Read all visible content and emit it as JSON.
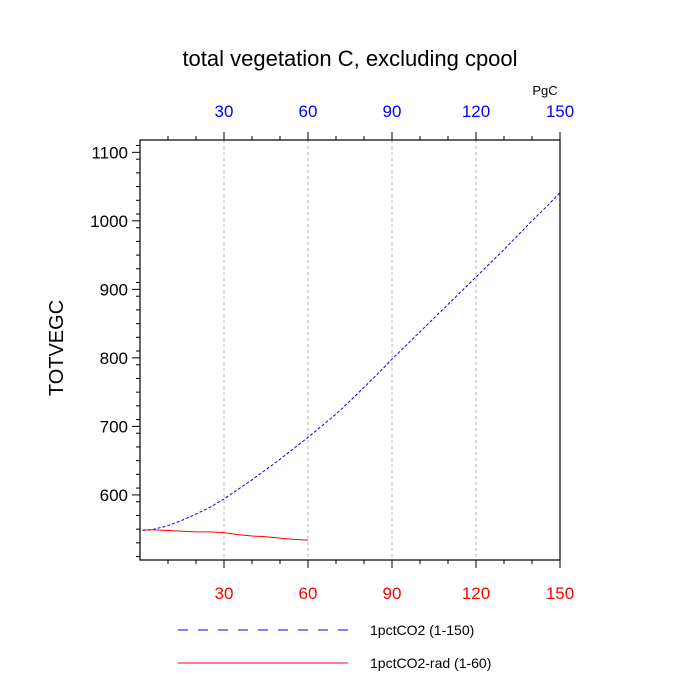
{
  "chart_data": {
    "type": "line",
    "title": "total vegetation C, excluding cpool",
    "ylabel": "TOTVEGC",
    "units_label": "PgC",
    "xlim": [
      0,
      150
    ],
    "ylim": [
      505,
      1118
    ],
    "x_ticks": [
      30,
      60,
      90,
      120,
      150
    ],
    "y_ticks": [
      600,
      700,
      800,
      900,
      1000,
      1100
    ],
    "grid_x": true,
    "grid_y": false,
    "top_axis_color": "#0000ff",
    "bottom_axis_color": "#ff0000",
    "legend_position": "bottom",
    "series": [
      {
        "name": "1pctCO2 (1-150)",
        "color": "#0000ff",
        "dash": "dashed",
        "x": [
          1,
          5,
          10,
          15,
          20,
          25,
          30,
          35,
          40,
          45,
          50,
          55,
          60,
          65,
          70,
          75,
          80,
          85,
          90,
          95,
          100,
          105,
          110,
          115,
          120,
          125,
          130,
          135,
          140,
          145,
          150
        ],
        "y": [
          548,
          550,
          555,
          563,
          572,
          582,
          594,
          608,
          622,
          637,
          652,
          668,
          684,
          701,
          718,
          737,
          757,
          777,
          798,
          818,
          838,
          858,
          878,
          898,
          918,
          938,
          958,
          979,
          1000,
          1020,
          1041
        ]
      },
      {
        "name": "1pctCO2-rad (1-60)",
        "color": "#ff0000",
        "dash": "solid",
        "x": [
          1,
          5,
          10,
          15,
          20,
          25,
          30,
          35,
          40,
          45,
          50,
          55,
          60
        ],
        "y": [
          549,
          549,
          548,
          547,
          546,
          546,
          545,
          542,
          540,
          539,
          537,
          535,
          534
        ]
      }
    ]
  }
}
